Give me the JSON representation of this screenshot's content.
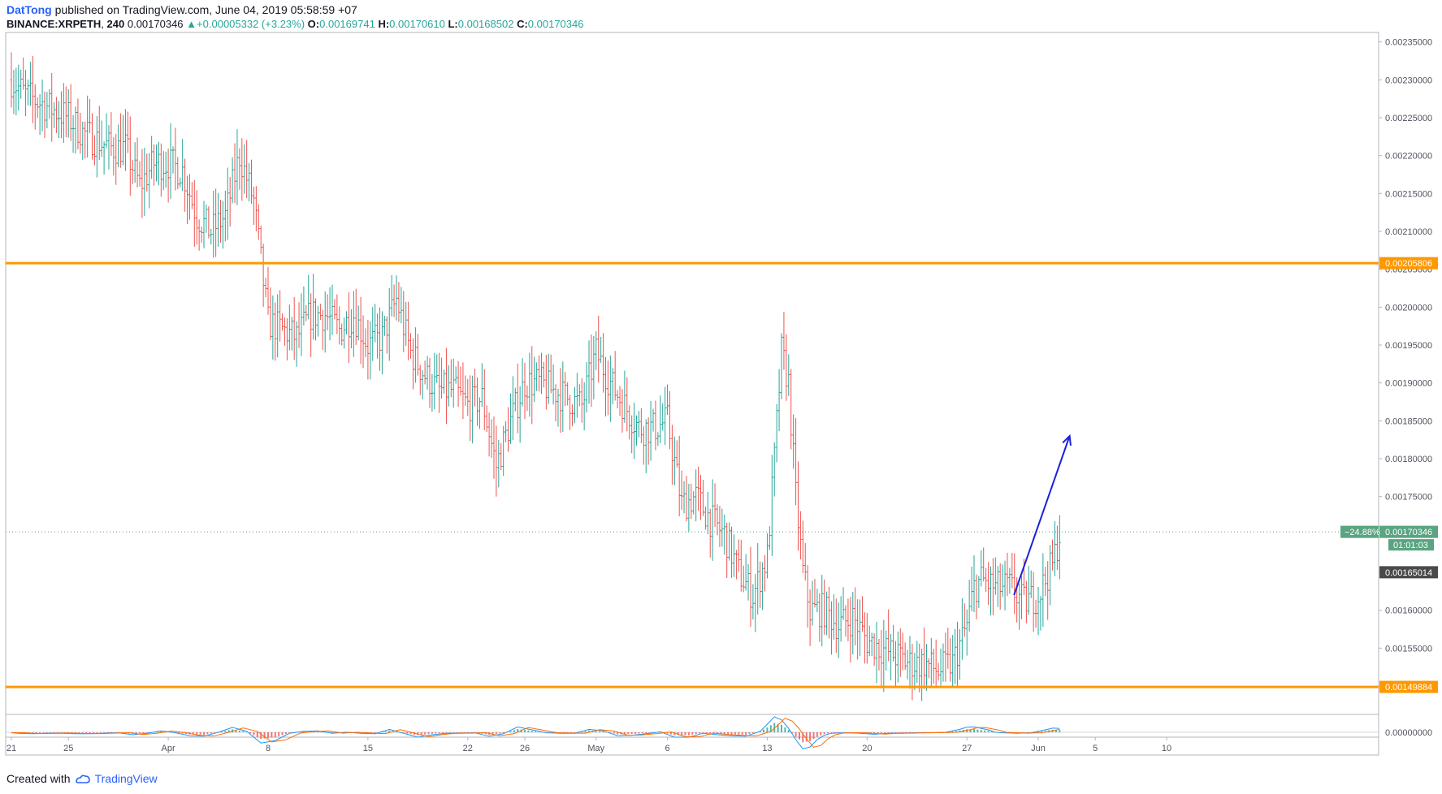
{
  "header": {
    "author": "DatTong",
    "published_text": "published on TradingView.com, June 04, 2019 05:58:59 +07",
    "symbol": "BINANCE:XRPETH",
    "interval": "240",
    "last": "0.00170346",
    "change": "+0.00005332 (+3.23%)",
    "open_label": "O:",
    "open": "0.00169741",
    "high_label": "H:",
    "high": "0.00170610",
    "low_label": "L:",
    "low": "0.00168502",
    "close_label": "C:",
    "close": "0.00170346"
  },
  "footer": {
    "created_with": "Created with",
    "brand": "TradingView"
  },
  "colors": {
    "up": "#26a69a",
    "down": "#ef5350",
    "level_line": "#ff9800",
    "arrow": "#1a22d9",
    "axis_text": "#50535e",
    "last_price_badge": "#5aa481",
    "dark_badge": "#4a4a4a"
  },
  "chart_data": {
    "type": "candlestick",
    "ylim": [
      0.0014625,
      0.0023625
    ],
    "y_ticks": [
      "0.00235000",
      "0.00230000",
      "0.00225000",
      "0.00220000",
      "0.00215000",
      "0.00210000",
      "0.00205000",
      "0.00200000",
      "0.00195000",
      "0.00190000",
      "0.00185000",
      "0.00180000",
      "0.00175000",
      "0.00170000",
      "0.00165000",
      "0.00160000",
      "0.00155000",
      "0.00150000"
    ],
    "x_ticks": [
      {
        "label": "21",
        "day": 0
      },
      {
        "label": "25",
        "day": 4
      },
      {
        "label": "Apr",
        "day": 11
      },
      {
        "label": "8",
        "day": 18
      },
      {
        "label": "15",
        "day": 25
      },
      {
        "label": "22",
        "day": 32
      },
      {
        "label": "26",
        "day": 36
      },
      {
        "label": "May",
        "day": 41
      },
      {
        "label": "6",
        "day": 46
      },
      {
        "label": "13",
        "day": 53
      },
      {
        "label": "20",
        "day": 60
      },
      {
        "label": "27",
        "day": 67
      },
      {
        "label": "Jun",
        "day": 72
      },
      {
        "label": "5",
        "day": 76
      },
      {
        "label": "10",
        "day": 81
      }
    ],
    "price_path": [
      [
        0,
        0.0023
      ],
      [
        1,
        0.00228
      ],
      [
        2,
        0.00227
      ],
      [
        3,
        0.00226
      ],
      [
        4,
        0.00225
      ],
      [
        5,
        0.00223
      ],
      [
        6,
        0.00222
      ],
      [
        7,
        0.00221
      ],
      [
        8,
        0.00221
      ],
      [
        9,
        0.00216
      ],
      [
        10,
        0.00219
      ],
      [
        11,
        0.00219
      ],
      [
        12,
        0.00218
      ],
      [
        13,
        0.00212
      ],
      [
        14,
        0.0021
      ],
      [
        15,
        0.00212
      ],
      [
        16,
        0.0022
      ],
      [
        17,
        0.00214
      ],
      [
        18,
        0.00198
      ],
      [
        19,
        0.00197
      ],
      [
        20,
        0.00196
      ],
      [
        21,
        0.00199
      ],
      [
        22,
        0.00199
      ],
      [
        23,
        0.00197
      ],
      [
        24,
        0.00199
      ],
      [
        25,
        0.00195
      ],
      [
        26,
        0.00196
      ],
      [
        27,
        0.00201
      ],
      [
        28,
        0.00194
      ],
      [
        29,
        0.00191
      ],
      [
        30,
        0.00189
      ],
      [
        31,
        0.00189
      ],
      [
        32,
        0.00187
      ],
      [
        33,
        0.00188
      ],
      [
        34,
        0.00179
      ],
      [
        35,
        0.00185
      ],
      [
        36,
        0.0019
      ],
      [
        37,
        0.0019
      ],
      [
        38,
        0.00189
      ],
      [
        39,
        0.00188
      ],
      [
        40,
        0.00187
      ],
      [
        41,
        0.00194
      ],
      [
        42,
        0.0019
      ],
      [
        43,
        0.00187
      ],
      [
        44,
        0.00184
      ],
      [
        45,
        0.00184
      ],
      [
        46,
        0.00185
      ],
      [
        47,
        0.00174
      ],
      [
        48,
        0.00175
      ],
      [
        49,
        0.00172
      ],
      [
        50,
        0.0017
      ],
      [
        51,
        0.00165
      ],
      [
        52,
        0.00162
      ],
      [
        53,
        0.00167
      ],
      [
        53.5,
        0.0018
      ],
      [
        54,
        0.00194
      ],
      [
        54.5,
        0.0019
      ],
      [
        55,
        0.00175
      ],
      [
        55.5,
        0.00165
      ],
      [
        56,
        0.0016
      ],
      [
        57,
        0.0016
      ],
      [
        58,
        0.00158
      ],
      [
        59,
        0.00159
      ],
      [
        60,
        0.00156
      ],
      [
        61,
        0.00155
      ],
      [
        62,
        0.00154
      ],
      [
        63,
        0.00153
      ],
      [
        64,
        0.00153
      ],
      [
        65,
        0.00152
      ],
      [
        66,
        0.00153
      ],
      [
        67,
        0.00158
      ],
      [
        67.5,
        0.00163
      ],
      [
        68,
        0.00164
      ],
      [
        69,
        0.00163
      ],
      [
        70,
        0.00163
      ],
      [
        71,
        0.00161
      ],
      [
        72,
        0.00162
      ],
      [
        73,
        0.00166
      ],
      [
        73.5,
        0.0017
      ]
    ],
    "levels": [
      {
        "value": 0.00205806,
        "label": "0.00205806"
      },
      {
        "value": 0.00149884,
        "label": "0.00149884"
      }
    ],
    "last_price": {
      "value": 0.00170346,
      "label": "0.00170346",
      "change_pct": "−24.88%",
      "countdown": "01:01:03"
    },
    "marker_price": {
      "value": 0.00165014,
      "label": "0.00165014"
    },
    "arrow": {
      "from": [
        70.3,
        0.00162
      ],
      "to": [
        74.2,
        0.00183
      ]
    },
    "indicator": {
      "zero_label": "0.00000000"
    }
  }
}
